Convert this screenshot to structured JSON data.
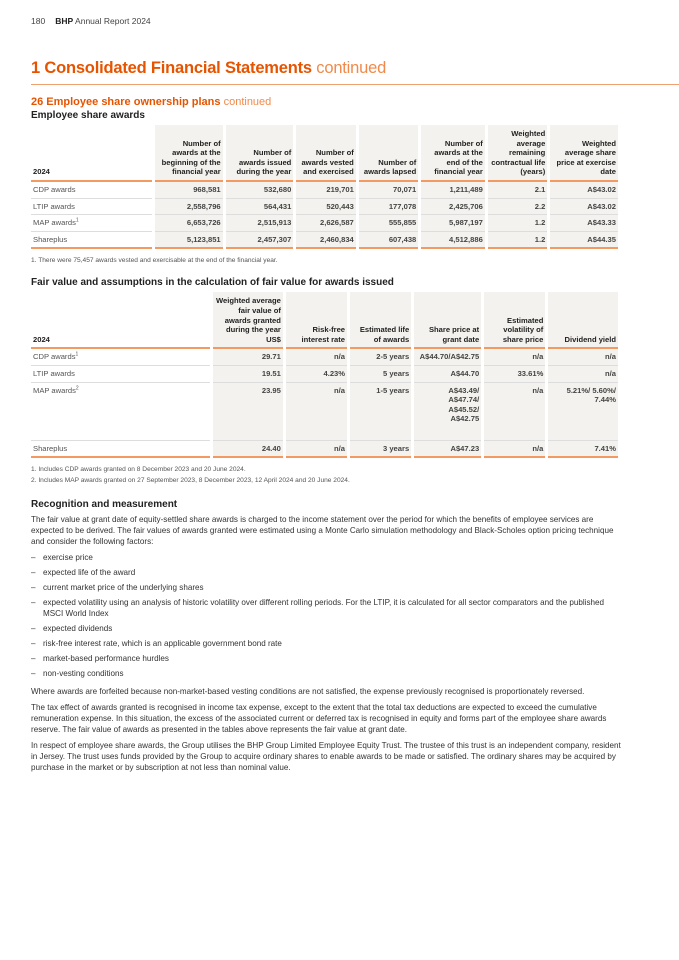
{
  "header": {
    "page": "180",
    "brand": "BHP",
    "report": "Annual Report 2024"
  },
  "title": {
    "main": "1 Consolidated Financial Statements",
    "cont": "continued"
  },
  "section": {
    "main": "26 Employee share ownership plans",
    "cont": "continued"
  },
  "table1": {
    "subtitle": "Employee share awards",
    "headers": [
      "2024",
      "Number of awards at the beginning of the financial year",
      "Number of awards issued during the year",
      "Number of awards vested and exercised",
      "Number of awards lapsed",
      "Number of awards at the end of the financial year",
      "Weighted average remaining contractual life (years)",
      "Weighted average share price at exercise date"
    ],
    "rows": [
      [
        "CDP awards",
        "968,581",
        "532,680",
        "219,701",
        "70,071",
        "1,211,489",
        "2.1",
        "A$43.02"
      ],
      [
        "LTIP awards",
        "2,558,796",
        "564,431",
        "520,443",
        "177,078",
        "2,425,706",
        "2.2",
        "A$43.02"
      ],
      [
        "MAP awards",
        "6,653,726",
        "2,515,913",
        "2,626,587",
        "555,855",
        "5,987,197",
        "1.2",
        "A$43.33"
      ],
      [
        "Shareplus",
        "5,123,851",
        "2,457,307",
        "2,460,834",
        "607,438",
        "4,512,886",
        "1.2",
        "A$44.35"
      ]
    ],
    "row_sup": [
      "",
      "",
      "1",
      ""
    ],
    "footnotes": [
      "1. There were 75,457 awards vested and exercisable at the end of the financial year."
    ]
  },
  "table2": {
    "subtitle": "Fair value and assumptions in the calculation of fair value for awards issued",
    "headers": [
      "2024",
      "Weighted average fair value of awards granted during the year US$",
      "Risk-free interest rate",
      "Estimated life of awards",
      "Share price at grant date",
      "Estimated volatility of share price",
      "Dividend yield"
    ],
    "rows": [
      [
        "CDP awards",
        "29.71",
        "n/a",
        "2-5 years",
        "A$44.70/A$42.75",
        "n/a",
        "n/a"
      ],
      [
        "LTIP awards",
        "19.51",
        "4.23%",
        "5 years",
        "A$44.70",
        "33.61%",
        "n/a"
      ],
      [
        "MAP awards",
        "23.95",
        "n/a",
        "1-5 years",
        "A$43.49/ A$47.74/ A$45.52/ A$42.75",
        "n/a",
        "5.21%/ 5.60%/ 7.44%"
      ],
      [
        "Shareplus",
        "24.40",
        "n/a",
        "3 years",
        "A$47.23",
        "n/a",
        "7.41%"
      ]
    ],
    "row_sup": [
      "1",
      "",
      "2",
      ""
    ],
    "footnotes": [
      "1. Includes CDP awards granted on 8 December 2023 and 20 June 2024.",
      "2. Includes MAP awards granted on 27 September 2023, 8 December 2023, 12 April 2024 and 20 June 2024."
    ]
  },
  "recognition": {
    "heading": "Recognition and measurement",
    "intro": "The fair value at grant date of equity-settled share awards is charged to the income statement over the period for which the benefits of employee services are expected to be derived. The fair values of awards granted were estimated using a Monte Carlo simulation methodology and Black-Scholes option pricing technique and consider the following factors:",
    "factors": [
      "exercise price",
      "expected life of the award",
      "current market price of the underlying shares",
      "expected volatility using an analysis of historic volatility over different rolling periods. For the LTIP, it is calculated for all sector comparators and the published MSCI World Index",
      "expected dividends",
      "risk-free interest rate, which is an applicable government bond rate",
      "market-based performance hurdles",
      "non-vesting conditions"
    ],
    "paragraphs": [
      "Where awards are forfeited because non-market-based vesting conditions are not satisfied, the expense previously recognised is proportionately reversed.",
      "The tax effect of awards granted is recognised in income tax expense, except to the extent that the total tax deductions are expected to exceed the cumulative remuneration expense. In this situation, the excess of the associated current or deferred tax is recognised in equity and forms part of the employee share awards reserve. The fair value of awards as presented in the tables above represents the fair value at grant date.",
      "In respect of employee share awards, the Group utilises the BHP Group Limited Employee Equity Trust. The trustee of this trust is an independent company, resident in Jersey. The trust uses funds provided by the Group to acquire ordinary shares to enable awards to be made or satisfied. The ordinary shares may be acquired by purchase in the market or by subscription at not less than nominal value."
    ]
  }
}
